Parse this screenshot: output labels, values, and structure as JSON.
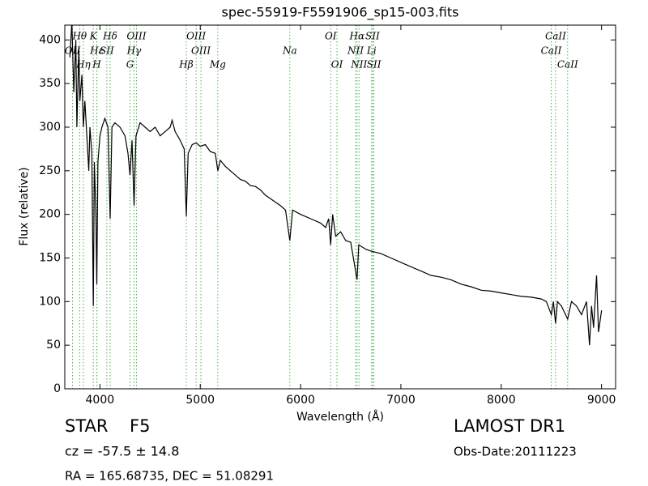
{
  "chart_data": {
    "type": "line",
    "title": "spec-55919-F5591906_sp15-003.fits",
    "x_label": "Wavelength (Å)",
    "y_label": "Flux (relative)",
    "color": "#000000",
    "line_color": "#4daf4a",
    "xlim": [
      3650,
      9140
    ],
    "ylim": [
      0,
      417
    ],
    "xticks": [
      4000,
      5000,
      6000,
      7000,
      8000,
      9000
    ],
    "yticks": [
      0,
      50,
      100,
      150,
      200,
      250,
      300,
      350,
      400
    ],
    "grid": false,
    "x": [
      3700,
      3720,
      3740,
      3760,
      3770,
      3790,
      3800,
      3820,
      3835,
      3850,
      3870,
      3889,
      3900,
      3920,
      3934,
      3945,
      3960,
      3969,
      3980,
      4000,
      4020,
      4050,
      4080,
      4102,
      4120,
      4150,
      4200,
      4250,
      4280,
      4300,
      4320,
      4340,
      4360,
      4400,
      4450,
      4500,
      4550,
      4600,
      4650,
      4700,
      4720,
      4750,
      4800,
      4840,
      4861,
      4880,
      4920,
      4960,
      5000,
      5050,
      5100,
      5150,
      5175,
      5200,
      5250,
      5300,
      5350,
      5400,
      5450,
      5500,
      5550,
      5600,
      5650,
      5700,
      5750,
      5800,
      5850,
      5893,
      5920,
      6000,
      6100,
      6200,
      6250,
      6280,
      6300,
      6320,
      6350,
      6400,
      6450,
      6500,
      6563,
      6580,
      6650,
      6700,
      6800,
      6900,
      7000,
      7100,
      7200,
      7300,
      7400,
      7500,
      7600,
      7700,
      7800,
      7900,
      8000,
      8100,
      8200,
      8300,
      8400,
      8450,
      8500,
      8520,
      8542,
      8560,
      8600,
      8662,
      8700,
      8750,
      8800,
      8850,
      8880,
      8900,
      8920,
      8950,
      8970,
      9000
    ],
    "values": [
      380,
      420,
      340,
      400,
      300,
      390,
      330,
      360,
      300,
      330,
      290,
      250,
      300,
      270,
      95,
      260,
      200,
      120,
      260,
      290,
      300,
      310,
      300,
      195,
      300,
      305,
      300,
      290,
      270,
      245,
      285,
      210,
      290,
      305,
      300,
      295,
      300,
      290,
      295,
      300,
      308,
      295,
      285,
      275,
      198,
      270,
      280,
      282,
      278,
      280,
      272,
      270,
      250,
      262,
      255,
      250,
      245,
      240,
      238,
      233,
      232,
      228,
      222,
      218,
      214,
      210,
      205,
      170,
      205,
      200,
      195,
      190,
      185,
      195,
      165,
      200,
      175,
      180,
      170,
      168,
      125,
      165,
      160,
      158,
      155,
      150,
      145,
      140,
      135,
      130,
      128,
      125,
      120,
      117,
      113,
      112,
      110,
      108,
      106,
      105,
      103,
      100,
      85,
      100,
      75,
      100,
      95,
      80,
      100,
      95,
      85,
      100,
      50,
      95,
      70,
      130,
      65,
      90
    ],
    "spectral_lines": [
      {
        "wavelength": 3727,
        "label": "OII"
      },
      {
        "wavelength": 3798,
        "label": "Hθ"
      },
      {
        "wavelength": 3835,
        "label": "Hη"
      },
      {
        "wavelength": 3934,
        "label": "K"
      },
      {
        "wavelength": 3970,
        "label": "Hε"
      },
      {
        "wavelength": 3969,
        "label": "H"
      },
      {
        "wavelength": 4069,
        "label": "SII"
      },
      {
        "wavelength": 4102,
        "label": "Hδ"
      },
      {
        "wavelength": 4300,
        "label": "G"
      },
      {
        "wavelength": 4340,
        "label": "Hγ"
      },
      {
        "wavelength": 4364,
        "label": "OIII"
      },
      {
        "wavelength": 4861,
        "label": "Hβ"
      },
      {
        "wavelength": 4959,
        "label": "OIII"
      },
      {
        "wavelength": 5007,
        "label": "OIII"
      },
      {
        "wavelength": 5175,
        "label": "Mg"
      },
      {
        "wavelength": 5893,
        "label": "Na"
      },
      {
        "wavelength": 6300,
        "label": "OI"
      },
      {
        "wavelength": 6363,
        "label": "OI"
      },
      {
        "wavelength": 6548,
        "label": "NII"
      },
      {
        "wavelength": 6563,
        "label": "Hα"
      },
      {
        "wavelength": 6583,
        "label": "NII"
      },
      {
        "wavelength": 6708,
        "label": "Li"
      },
      {
        "wavelength": 6717,
        "label": "SII"
      },
      {
        "wavelength": 6731,
        "label": "SII"
      },
      {
        "wavelength": 8498,
        "label": "CaII"
      },
      {
        "wavelength": 8542,
        "label": "CaII"
      },
      {
        "wavelength": 8662,
        "label": "CaII"
      }
    ]
  },
  "footer": {
    "object_class": "STAR",
    "subclass": "F5",
    "redshift": "cz = -57.5 ± 14.8",
    "coordinates": "RA = 165.68735, DEC = 51.08291",
    "survey": "LAMOST DR1",
    "obs_date": "Obs-Date:20111223"
  }
}
